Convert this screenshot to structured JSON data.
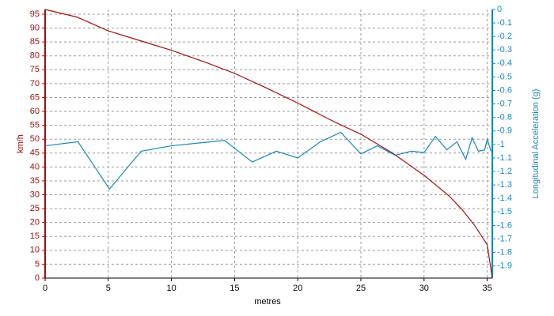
{
  "chart_data": {
    "type": "line",
    "xlabel": "metres",
    "ylabel": "km/h",
    "y2label": "Longitudinal Acceleration (g)",
    "xlim": [
      0,
      35.4
    ],
    "xticks": [
      0,
      5,
      10,
      15,
      20,
      25,
      30,
      35
    ],
    "ylim": [
      0,
      96.7
    ],
    "yticks": [
      0,
      5,
      10,
      15,
      20,
      25,
      30,
      35,
      40,
      45,
      50,
      55,
      60,
      65,
      70,
      75,
      80,
      85,
      90,
      95
    ],
    "y2lim": [
      -1.99,
      0
    ],
    "y2ticks": [
      0,
      -0.1,
      -0.2,
      -0.3,
      -0.4,
      -0.5,
      -0.6,
      -0.7,
      -0.8,
      -0.9,
      -1,
      -1.1,
      -1.2,
      -1.3,
      -1.4,
      -1.5,
      -1.6,
      -1.7,
      -1.8,
      -1.9
    ],
    "grid": true,
    "series": [
      {
        "name": "km/h",
        "color": "#a01010",
        "axis": "y",
        "x": [
          0,
          2.5,
          5,
          7.5,
          10,
          12.5,
          15,
          17.5,
          20,
          23,
          25,
          27.5,
          30,
          32,
          33,
          34,
          35,
          35.4
        ],
        "values": [
          96.7,
          94,
          89,
          85.5,
          82,
          78,
          73.7,
          68.5,
          63,
          56,
          51.8,
          45,
          37,
          29.5,
          24.7,
          19,
          12,
          0
        ]
      },
      {
        "name": "Longitudinal Acceleration (g)",
        "color": "#1a86b8",
        "axis": "y2",
        "x": [
          0,
          2.6,
          5.1,
          7.6,
          10,
          14.2,
          16.4,
          18.3,
          20,
          21.8,
          23.4,
          25,
          26.3,
          27.7,
          29,
          30,
          30.9,
          31.8,
          32.6,
          33.3,
          33.8,
          34.3,
          34.8,
          35,
          35.3
        ],
        "values": [
          -1.01,
          -0.98,
          -1.33,
          -1.05,
          -1.01,
          -0.97,
          -1.13,
          -1.05,
          -1.1,
          -0.98,
          -0.91,
          -1.07,
          -1.01,
          -1.08,
          -1.05,
          -1.06,
          -0.94,
          -1.04,
          -0.98,
          -1.11,
          -0.95,
          -1.05,
          -1.04,
          -0.96,
          -1.05
        ]
      }
    ]
  }
}
